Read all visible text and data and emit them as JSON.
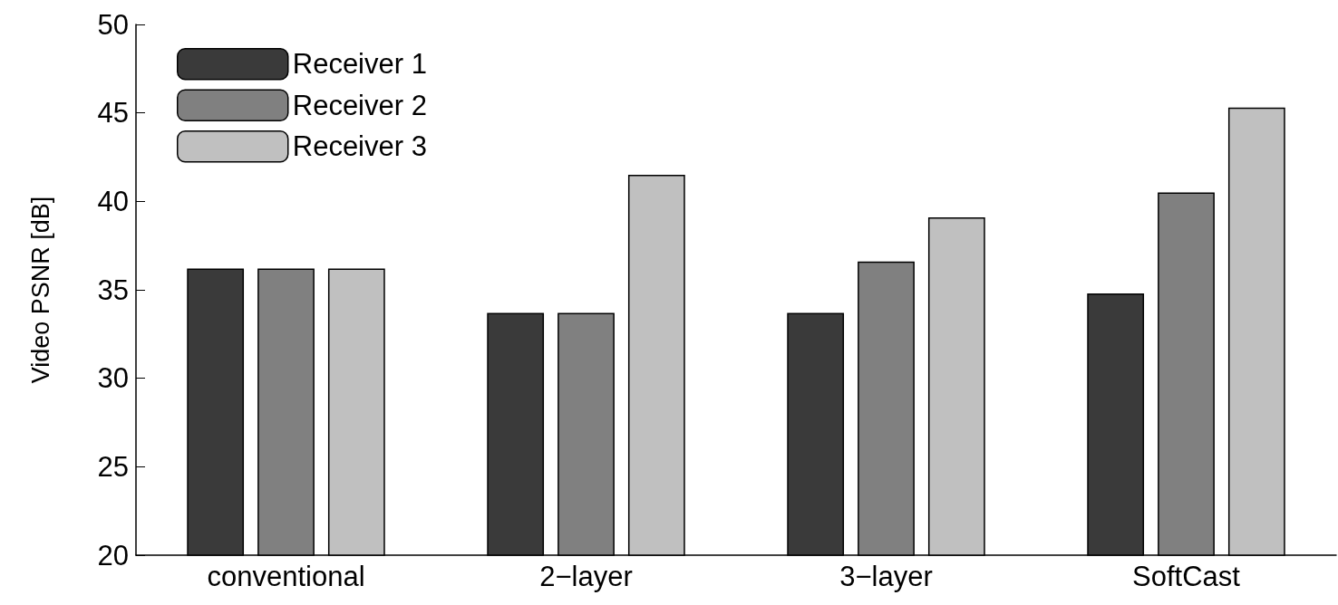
{
  "chart_data": {
    "type": "bar",
    "ylabel": "Video PSNR [dB]",
    "categories": [
      "conventional",
      "2−layer",
      "3−layer",
      "SoftCast"
    ],
    "series": [
      {
        "name": "Receiver 1",
        "color": "#3a3a3a",
        "values": [
          36.2,
          33.7,
          33.7,
          34.8
        ]
      },
      {
        "name": "Receiver 2",
        "color": "#808080",
        "values": [
          36.2,
          33.7,
          36.6,
          40.5
        ]
      },
      {
        "name": "Receiver 3",
        "color": "#c0c0c0",
        "values": [
          36.2,
          41.5,
          39.1,
          45.3
        ]
      }
    ],
    "ylim": [
      20,
      50
    ],
    "yticks": [
      20,
      25,
      30,
      35,
      40,
      45,
      50
    ],
    "grid": false,
    "legend": "top left"
  }
}
